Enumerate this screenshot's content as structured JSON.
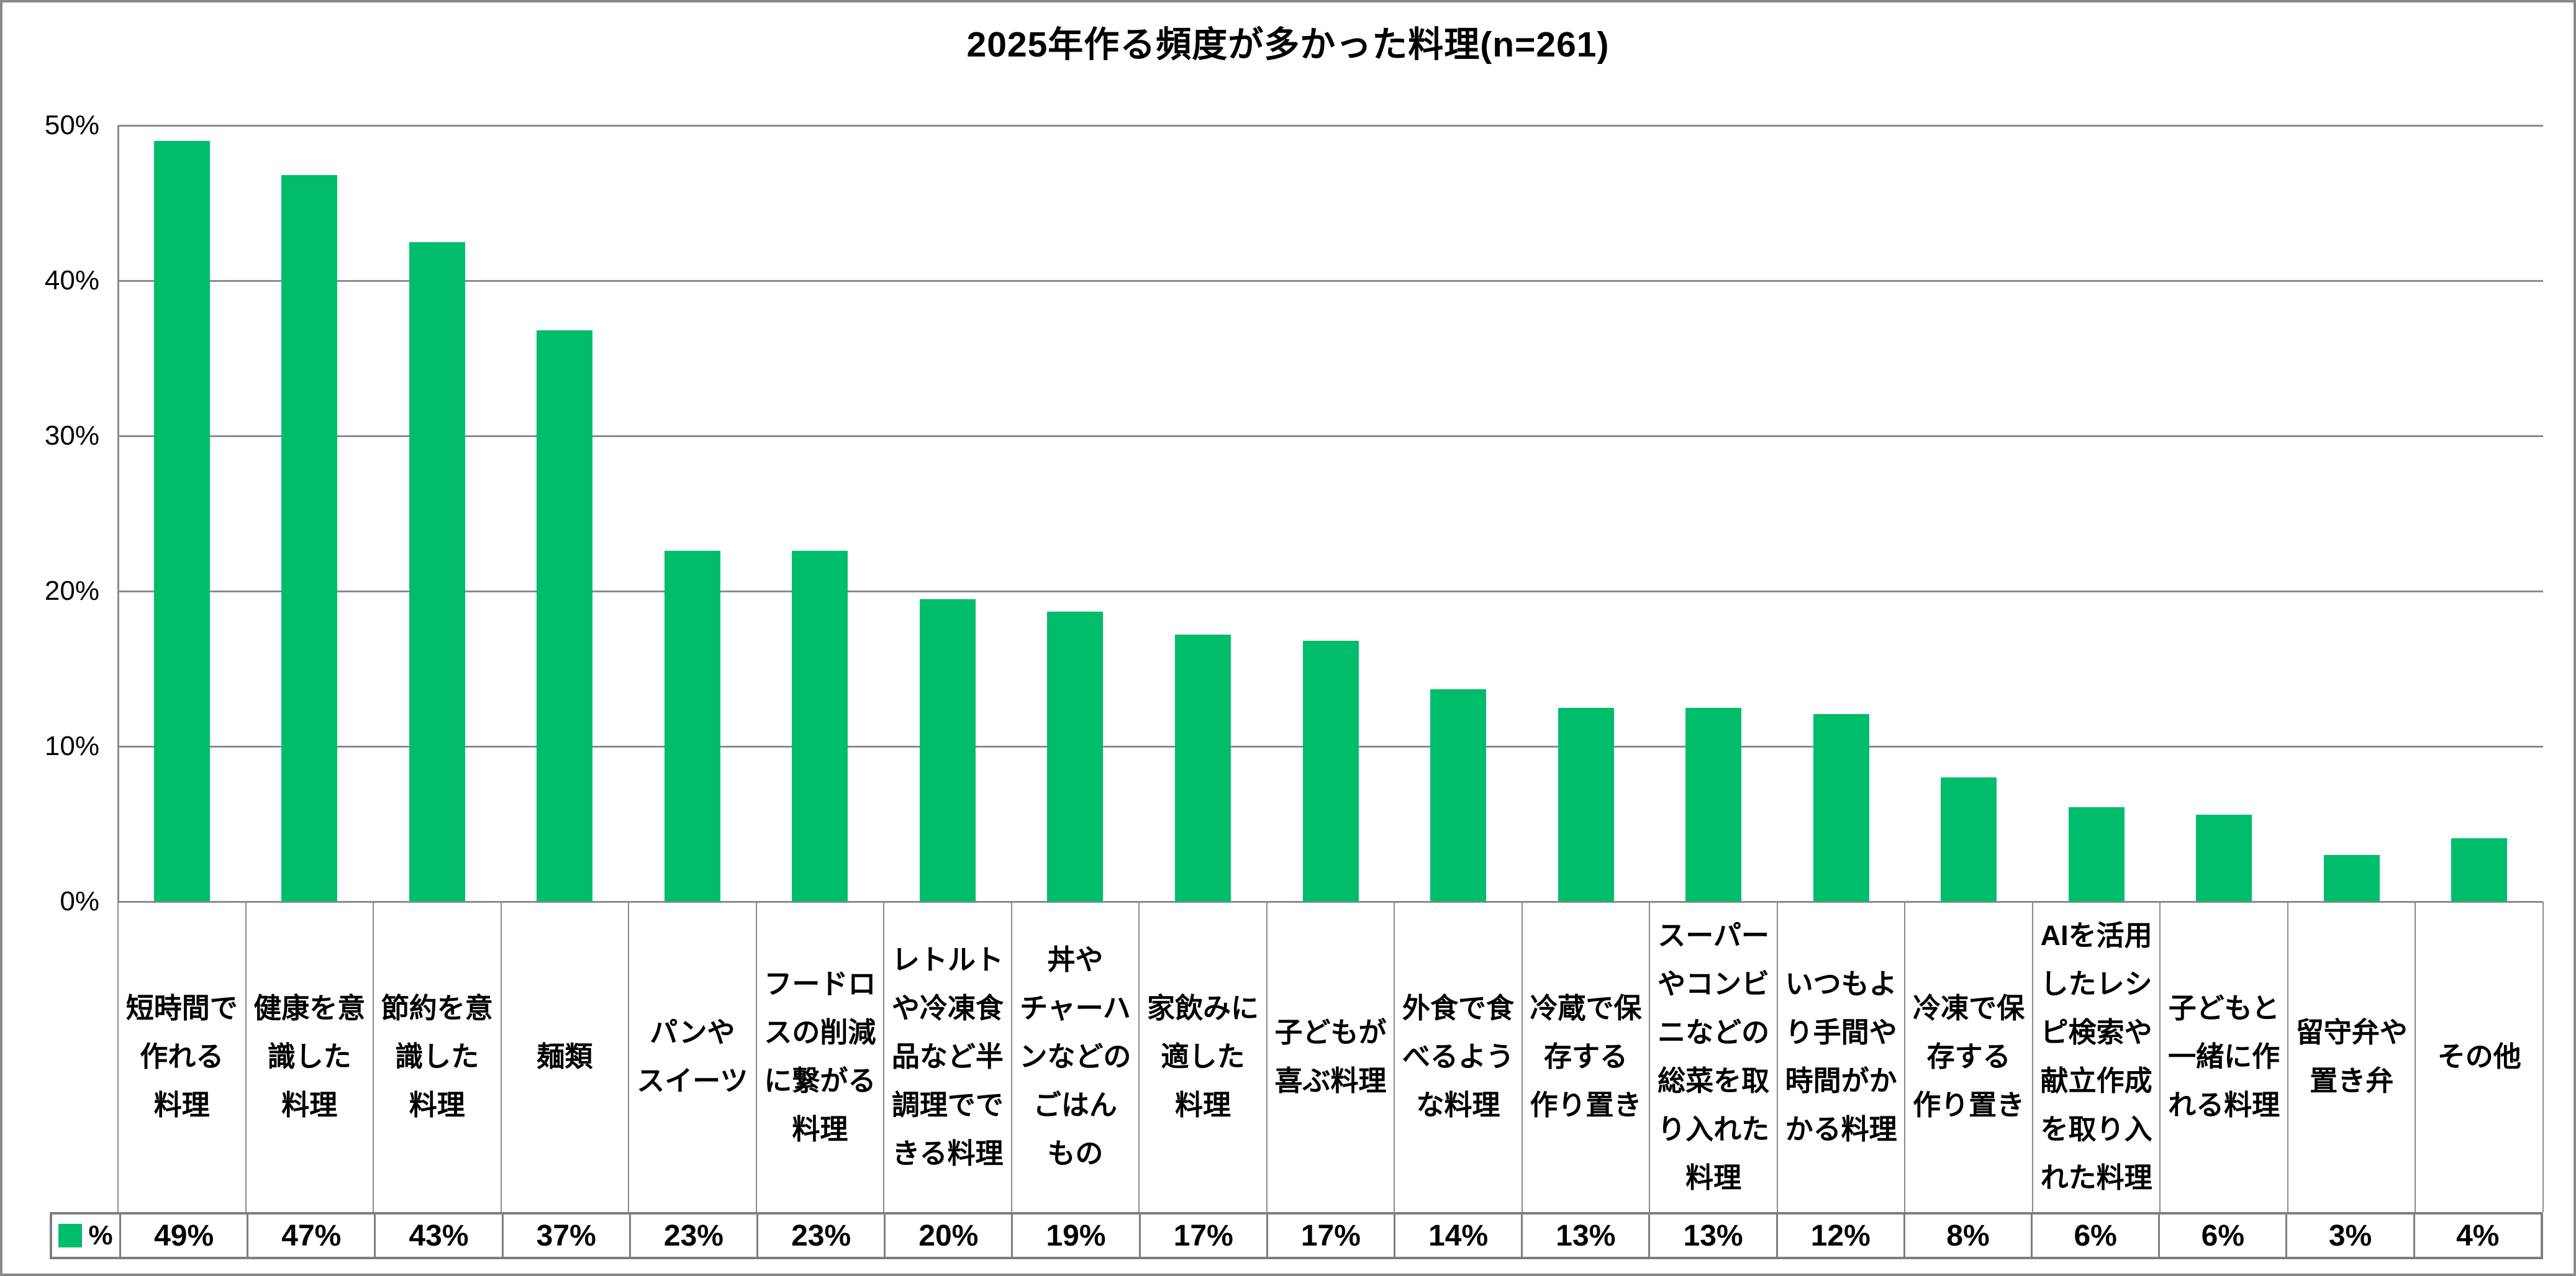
{
  "title": "2025年作る頻度が多かった料理(n=261)",
  "colors": {
    "bar": "#00bd6c",
    "gridline": "#8c8c8c",
    "table_border": "#7f7f7f",
    "text": "#000000",
    "background": "#ffffff"
  },
  "y_axis": {
    "ticks": [
      "50%",
      "40%",
      "30%",
      "20%",
      "10%",
      "0%"
    ]
  },
  "legend": {
    "label": "%",
    "swatch_color": "#00bd6c"
  },
  "chart_data": {
    "type": "bar",
    "title": "2025年作る頻度が多かった料理(n=261)",
    "sample_size_label": "n=261",
    "series_name": "%",
    "categories": [
      "短時間で作れる料理",
      "健康を意識した料理",
      "節約を意識した料理",
      "麺類",
      "パンやスイーツ",
      "フードロスの削減に繋がる料理",
      "レトルトや冷凍食品など半調理でできる料理",
      "丼やチャーハンなどのごはんもの",
      "家飲みに適した料理",
      "子どもが喜ぶ料理",
      "外食で食べるような料理",
      "冷蔵で保存する作り置き",
      "スーパーやコンビニなどの総菜を取り入れた料理",
      "いつもより手間や時間がかかる料理",
      "冷凍で保存する作り置き",
      "AIを活用したレシピ検索や献立作成を取り入れた料理",
      "子どもと一緒に作れる料理",
      "留守弁や置き弁",
      "その他"
    ],
    "values": [
      49,
      47,
      43,
      37,
      23,
      23,
      20,
      19,
      17,
      17,
      14,
      13,
      13,
      12,
      8,
      6,
      6,
      3,
      4
    ],
    "bar_heights_pct": [
      49.0,
      46.8,
      42.5,
      36.8,
      22.6,
      22.6,
      19.5,
      18.7,
      17.2,
      16.8,
      13.7,
      12.5,
      12.5,
      12.1,
      8.0,
      6.1,
      5.6,
      3.0,
      4.1
    ],
    "ylim": [
      0,
      50
    ],
    "ytick_step": 10,
    "grid": true,
    "legend_position": "bottom-table-left"
  },
  "category_labels_display": [
    "短時間で\n作れる\n料理",
    "健康を意\n識した\n料理",
    "節約を意\n識した\n料理",
    "麺類",
    "パンや\nスイーツ",
    "フードロ\nスの削減\nに繋がる\n料理",
    "レトルト\nや冷凍食\n品など半\n調理でで\nきる料理",
    "丼や\nチャーハ\nンなどの\nごはん\nもの",
    "家飲みに\n適した\n料理",
    "子どもが\n喜ぶ料理",
    "外食で食\nべるよう\nな料理",
    "冷蔵で保\n存する\n作り置き",
    "スーパー\nやコンビ\nニなどの\n総菜を取\nり入れた\n料理",
    "いつもよ\nり手間や\n時間がか\nかる料理",
    "冷凍で保\n存する\n作り置き",
    "AIを活用\nしたレシ\nピ検索や\n献立作成\nを取り入\nれた料理",
    "子どもと\n一緒に作\nれる料理",
    "留守弁や\n置き弁",
    "その他"
  ],
  "table_values_display": [
    "49%",
    "47%",
    "43%",
    "37%",
    "23%",
    "23%",
    "20%",
    "19%",
    "17%",
    "17%",
    "14%",
    "13%",
    "13%",
    "12%",
    "8%",
    "6%",
    "6%",
    "3%",
    "4%"
  ]
}
